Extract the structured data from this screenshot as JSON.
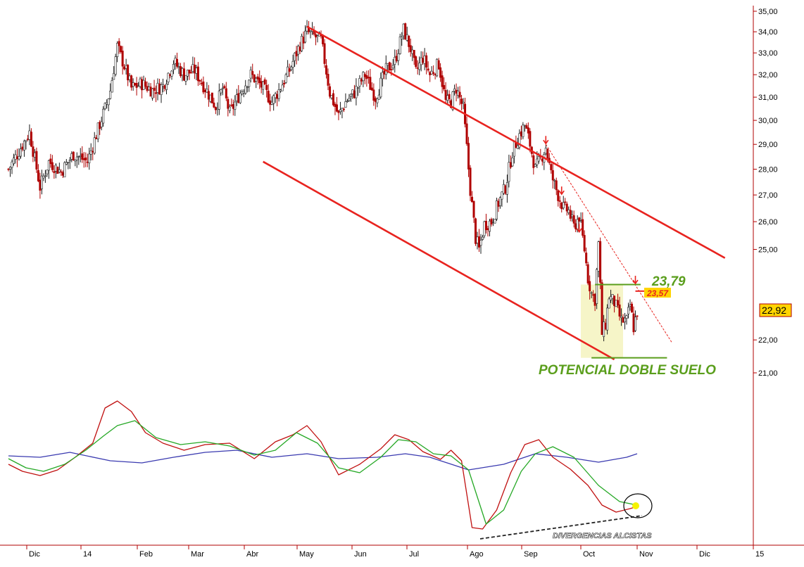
{
  "chart_data": [
    {
      "type": "candlestick",
      "y_ticks": [
        "35,00",
        "34,00",
        "33,00",
        "32,00",
        "31,00",
        "30,00",
        "29,00",
        "28,00",
        "27,00",
        "26,00",
        "25,00",
        "22,00",
        "21,00"
      ],
      "y_values": [
        35,
        34,
        33,
        32,
        31,
        30,
        29,
        28,
        27,
        26,
        25,
        22,
        21
      ],
      "ylim": [
        20.7,
        35.25
      ],
      "last_price": "22,92",
      "last_price_value": 22.92,
      "resistance_label": "23,79",
      "resistance_value": 23.79,
      "entry_label": "23,57",
      "entry_value": 23.57,
      "pattern_label": "POTENCIAL DOBLE SUELO",
      "support_value": 21.45,
      "colors": {
        "bull": "#1a1a1a",
        "bear": "#b00000",
        "trend": "#e8231f",
        "support": "#5a9e1c",
        "highlight": "#f6f5c8",
        "price_tag": "#ffd400"
      },
      "price_path": [
        [
          0,
          28.0
        ],
        [
          5,
          28.6
        ],
        [
          12,
          29.5
        ],
        [
          18,
          27.3
        ],
        [
          23,
          28.3
        ],
        [
          30,
          27.9
        ],
        [
          37,
          28.6
        ],
        [
          45,
          28.3
        ],
        [
          50,
          29.4
        ],
        [
          55,
          30.5
        ],
        [
          58,
          31.3
        ],
        [
          62,
          33.3
        ],
        [
          66,
          32.4
        ],
        [
          70,
          31.4
        ],
        [
          76,
          31.6
        ],
        [
          82,
          31.3
        ],
        [
          88,
          31.5
        ],
        [
          94,
          32.6
        ],
        [
          100,
          32.0
        ],
        [
          106,
          32.2
        ],
        [
          112,
          31.4
        ],
        [
          118,
          30.6
        ],
        [
          122,
          31.4
        ],
        [
          126,
          30.3
        ],
        [
          132,
          31.2
        ],
        [
          138,
          32.0
        ],
        [
          144,
          31.5
        ],
        [
          150,
          30.8
        ],
        [
          154,
          31.3
        ],
        [
          160,
          32.2
        ],
        [
          166,
          33.4
        ],
        [
          170,
          34.0
        ],
        [
          174,
          33.8
        ],
        [
          178,
          33.6
        ],
        [
          183,
          31.2
        ],
        [
          188,
          30.2
        ],
        [
          192,
          30.8
        ],
        [
          197,
          31.2
        ],
        [
          203,
          32.0
        ],
        [
          209,
          31.0
        ],
        [
          215,
          32.2
        ],
        [
          220,
          32.6
        ],
        [
          225,
          34.1
        ],
        [
          229,
          33.2
        ],
        [
          232,
          32.1
        ],
        [
          236,
          32.8
        ],
        [
          240,
          32.0
        ],
        [
          245,
          32.5
        ],
        [
          249,
          30.8
        ],
        [
          252,
          30.8
        ],
        [
          255,
          31.4
        ],
        [
          259,
          30.5
        ],
        [
          263,
          27.2
        ],
        [
          266,
          25.4
        ],
        [
          268,
          25.0
        ],
        [
          271,
          25.9
        ],
        [
          275,
          26.0
        ],
        [
          279,
          26.7
        ],
        [
          283,
          27.3
        ],
        [
          287,
          28.7
        ],
        [
          291,
          29.4
        ],
        [
          294,
          29.8
        ],
        [
          297,
          29.0
        ],
        [
          300,
          28.0
        ],
        [
          303,
          28.4
        ],
        [
          306,
          28.9
        ],
        [
          309,
          27.8
        ],
        [
          313,
          27.0
        ],
        [
          316,
          26.5
        ],
        [
          319,
          26.4
        ],
        [
          322,
          25.8
        ],
        [
          325,
          26.2
        ],
        [
          328,
          25.0
        ],
        [
          330,
          24.0
        ],
        [
          332,
          23.5
        ],
        [
          334,
          23.3
        ],
        [
          336,
          25.2
        ],
        [
          338,
          22.2
        ],
        [
          340,
          22.5
        ],
        [
          342,
          23.4
        ],
        [
          345,
          23.2
        ],
        [
          349,
          22.6
        ],
        [
          352,
          22.6
        ],
        [
          354,
          23.1
        ],
        [
          356,
          22.4
        ],
        [
          358,
          22.9
        ]
      ],
      "candle_range": [
        0,
        358
      ],
      "trend_lines": [
        {
          "label": "resistance",
          "p1": [
            170,
            34.25
          ],
          "p2": [
            408,
            24.7
          ]
        },
        {
          "label": "channel-support",
          "p1": [
            145,
            28.3
          ],
          "p2": [
            345,
            21.4
          ]
        }
      ]
    },
    {
      "type": "line",
      "x_ticks": [
        "Dic",
        "14",
        "Feb",
        "Mar",
        "Abr",
        "May",
        "Jun",
        "Jul",
        "Ago",
        "Sep",
        "Oct",
        "Nov",
        "Dic",
        "15"
      ],
      "annotation": "DIVERGENCIAS ALCISTAS",
      "series": [
        {
          "color": "#3a3ab0",
          "values": [
            [
              0,
              648
            ],
            [
              18,
              650
            ],
            [
              35,
              643
            ],
            [
              58,
              655
            ],
            [
              76,
              658
            ],
            [
              94,
              650
            ],
            [
              112,
              643
            ],
            [
              130,
              640
            ],
            [
              150,
              650
            ],
            [
              170,
              645
            ],
            [
              188,
              652
            ],
            [
              210,
              650
            ],
            [
              226,
              645
            ],
            [
              240,
              650
            ],
            [
              262,
              668
            ],
            [
              282,
              660
            ],
            [
              300,
              645
            ],
            [
              318,
              650
            ],
            [
              336,
              657
            ],
            [
              352,
              650
            ],
            [
              358,
              645
            ]
          ]
        },
        {
          "color": "#c01010",
          "values": [
            [
              0,
              660
            ],
            [
              8,
              670
            ],
            [
              18,
              676
            ],
            [
              28,
              668
            ],
            [
              38,
              650
            ],
            [
              48,
              630
            ],
            [
              55,
              580
            ],
            [
              62,
              570
            ],
            [
              70,
              585
            ],
            [
              78,
              615
            ],
            [
              88,
              630
            ],
            [
              100,
              640
            ],
            [
              112,
              632
            ],
            [
              126,
              630
            ],
            [
              140,
              652
            ],
            [
              152,
              628
            ],
            [
              162,
              618
            ],
            [
              170,
              605
            ],
            [
              178,
              628
            ],
            [
              188,
              675
            ],
            [
              200,
              660
            ],
            [
              212,
              638
            ],
            [
              220,
              618
            ],
            [
              228,
              625
            ],
            [
              236,
              642
            ],
            [
              246,
              653
            ],
            [
              252,
              640
            ],
            [
              258,
              655
            ],
            [
              264,
              750
            ],
            [
              270,
              752
            ],
            [
              278,
              725
            ],
            [
              286,
              672
            ],
            [
              294,
              632
            ],
            [
              302,
              625
            ],
            [
              310,
              650
            ],
            [
              320,
              667
            ],
            [
              330,
              690
            ],
            [
              338,
              718
            ],
            [
              346,
              728
            ],
            [
              354,
              723
            ],
            [
              358,
              720
            ]
          ]
        },
        {
          "color": "#25a825",
          "values": [
            [
              0,
              652
            ],
            [
              10,
              665
            ],
            [
              20,
              670
            ],
            [
              32,
              660
            ],
            [
              44,
              640
            ],
            [
              54,
              620
            ],
            [
              62,
              605
            ],
            [
              72,
              598
            ],
            [
              84,
              622
            ],
            [
              98,
              632
            ],
            [
              112,
              628
            ],
            [
              126,
              634
            ],
            [
              140,
              647
            ],
            [
              152,
              640
            ],
            [
              164,
              615
            ],
            [
              176,
              630
            ],
            [
              188,
              665
            ],
            [
              200,
              672
            ],
            [
              212,
              650
            ],
            [
              222,
              625
            ],
            [
              232,
              628
            ],
            [
              242,
              645
            ],
            [
              252,
              648
            ],
            [
              262,
              668
            ],
            [
              272,
              745
            ],
            [
              282,
              725
            ],
            [
              292,
              670
            ],
            [
              300,
              645
            ],
            [
              310,
              635
            ],
            [
              322,
              650
            ],
            [
              336,
              690
            ],
            [
              348,
              713
            ],
            [
              358,
              718
            ]
          ]
        }
      ]
    }
  ]
}
